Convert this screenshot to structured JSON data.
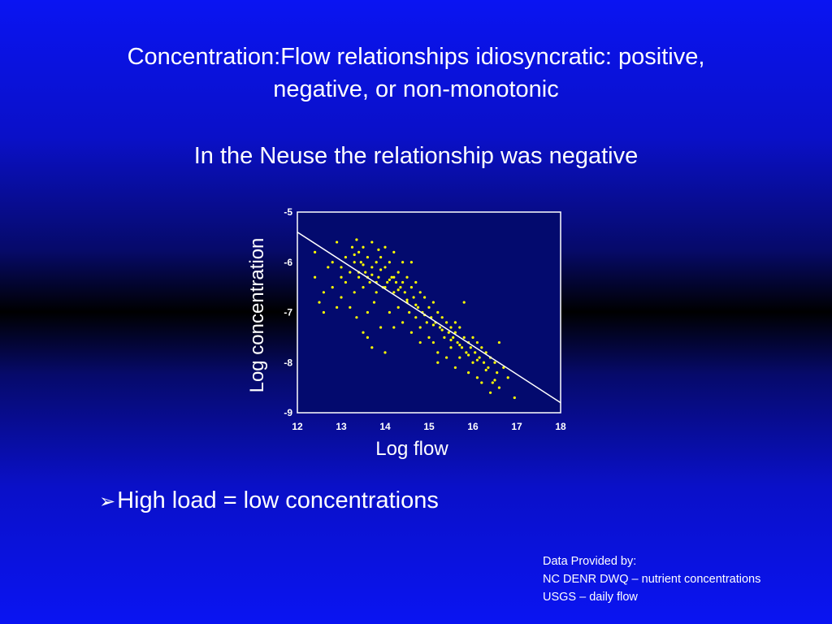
{
  "slide": {
    "title_line1": "Concentration:Flow relationships idiosyncratic: positive,",
    "title_line2": "negative, or non-monotonic",
    "subtitle": "In the Neuse the relationship was negative",
    "bullet_marker": "➢",
    "bullet": "High load = low concentrations",
    "credits": {
      "heading": "Data Provided by:",
      "line1": "NC DENR DWQ – nutrient concentrations",
      "line2": "USGS – daily flow"
    }
  },
  "colors": {
    "point": "#ffff00",
    "line": "#ffffff",
    "frame": "#ffffff",
    "plot_background": "#030a6e"
  },
  "chart_data": {
    "type": "scatter",
    "xlabel": "Log flow",
    "ylabel": "Log concentration",
    "xlim": [
      12,
      18
    ],
    "ylim": [
      -9,
      -5
    ],
    "xticks": [
      12,
      13,
      14,
      15,
      16,
      17,
      18
    ],
    "yticks": [
      -5,
      -6,
      -7,
      -8,
      -9
    ],
    "grid": false,
    "trend_line": {
      "x": [
        12,
        18
      ],
      "y": [
        -5.4,
        -8.8
      ]
    },
    "points": [
      [
        12.4,
        -5.8
      ],
      [
        12.4,
        -6.3
      ],
      [
        12.5,
        -6.8
      ],
      [
        12.6,
        -7.0
      ],
      [
        12.7,
        -6.1
      ],
      [
        12.8,
        -6.5
      ],
      [
        12.9,
        -5.6
      ],
      [
        12.9,
        -6.9
      ],
      [
        13.0,
        -6.1
      ],
      [
        13.0,
        -6.7
      ],
      [
        13.1,
        -5.9
      ],
      [
        13.1,
        -6.4
      ],
      [
        13.2,
        -6.2
      ],
      [
        13.2,
        -6.9
      ],
      [
        13.25,
        -5.7
      ],
      [
        13.3,
        -6.0
      ],
      [
        13.3,
        -6.6
      ],
      [
        13.35,
        -5.55
      ],
      [
        13.35,
        -7.1
      ],
      [
        13.4,
        -5.8
      ],
      [
        13.4,
        -6.3
      ],
      [
        13.45,
        -6.0
      ],
      [
        13.5,
        -5.7
      ],
      [
        13.5,
        -6.5
      ],
      [
        13.5,
        -7.4
      ],
      [
        13.55,
        -6.2
      ],
      [
        13.6,
        -5.9
      ],
      [
        13.6,
        -7.0
      ],
      [
        13.65,
        -6.4
      ],
      [
        13.7,
        -5.6
      ],
      [
        13.7,
        -6.1
      ],
      [
        13.7,
        -7.7
      ],
      [
        13.75,
        -6.8
      ],
      [
        13.8,
        -6.0
      ],
      [
        13.8,
        -6.6
      ],
      [
        13.85,
        -5.75
      ],
      [
        13.85,
        -6.3
      ],
      [
        13.9,
        -5.9
      ],
      [
        13.9,
        -7.3
      ],
      [
        13.95,
        -6.5
      ],
      [
        14.0,
        -6.1
      ],
      [
        14.0,
        -5.7
      ],
      [
        14.05,
        -6.4
      ],
      [
        14.1,
        -6.0
      ],
      [
        14.1,
        -7.0
      ],
      [
        14.15,
        -6.3
      ],
      [
        14.2,
        -5.8
      ],
      [
        14.2,
        -6.6
      ],
      [
        14.25,
        -6.4
      ],
      [
        14.3,
        -6.2
      ],
      [
        14.3,
        -6.9
      ],
      [
        14.35,
        -6.5
      ],
      [
        14.4,
        -6.0
      ],
      [
        14.4,
        -7.2
      ],
      [
        14.45,
        -6.6
      ],
      [
        14.5,
        -6.3
      ],
      [
        14.5,
        -6.8
      ],
      [
        14.55,
        -7.0
      ],
      [
        14.6,
        -6.5
      ],
      [
        14.6,
        -7.4
      ],
      [
        14.65,
        -6.7
      ],
      [
        14.7,
        -6.4
      ],
      [
        14.7,
        -7.1
      ],
      [
        14.75,
        -6.9
      ],
      [
        14.8,
        -6.6
      ],
      [
        14.8,
        -7.3
      ],
      [
        14.85,
        -7.0
      ],
      [
        14.9,
        -6.7
      ],
      [
        14.95,
        -7.2
      ],
      [
        15.0,
        -6.9
      ],
      [
        15.0,
        -7.5
      ],
      [
        15.05,
        -7.1
      ],
      [
        15.1,
        -6.8
      ],
      [
        15.1,
        -7.6
      ],
      [
        15.15,
        -7.2
      ],
      [
        15.2,
        -7.0
      ],
      [
        15.2,
        -7.8
      ],
      [
        15.25,
        -7.3
      ],
      [
        15.3,
        -7.1
      ],
      [
        15.35,
        -7.5
      ],
      [
        15.4,
        -7.2
      ],
      [
        15.4,
        -7.9
      ],
      [
        15.45,
        -7.4
      ],
      [
        15.5,
        -7.3
      ],
      [
        15.5,
        -7.7
      ],
      [
        15.55,
        -7.5
      ],
      [
        15.6,
        -7.4
      ],
      [
        15.6,
        -8.1
      ],
      [
        15.65,
        -7.6
      ],
      [
        15.7,
        -7.3
      ],
      [
        15.7,
        -7.9
      ],
      [
        15.75,
        -7.7
      ],
      [
        15.8,
        -7.5
      ],
      [
        15.85,
        -7.8
      ],
      [
        15.9,
        -7.6
      ],
      [
        15.9,
        -8.2
      ],
      [
        15.95,
        -7.7
      ],
      [
        16.0,
        -7.5
      ],
      [
        16.0,
        -8.0
      ],
      [
        16.05,
        -7.8
      ],
      [
        16.1,
        -7.6
      ],
      [
        16.1,
        -8.3
      ],
      [
        16.15,
        -7.9
      ],
      [
        16.2,
        -7.7
      ],
      [
        16.25,
        -8.0
      ],
      [
        16.3,
        -7.8
      ],
      [
        16.35,
        -8.1
      ],
      [
        16.4,
        -7.9
      ],
      [
        16.45,
        -8.4
      ],
      [
        16.5,
        -8.0
      ],
      [
        16.55,
        -8.2
      ],
      [
        16.6,
        -8.5
      ],
      [
        16.7,
        -8.1
      ],
      [
        16.8,
        -8.3
      ],
      [
        16.95,
        -8.7
      ],
      [
        13.4,
        -6.2
      ],
      [
        13.6,
        -6.3
      ],
      [
        13.8,
        -6.4
      ],
      [
        14.0,
        -6.5
      ],
      [
        14.2,
        -6.3
      ],
      [
        14.4,
        -6.4
      ],
      [
        13.3,
        -5.85
      ],
      [
        13.5,
        -6.05
      ],
      [
        13.7,
        -6.25
      ],
      [
        13.9,
        -6.15
      ],
      [
        14.1,
        -6.35
      ],
      [
        14.3,
        -6.55
      ],
      [
        14.5,
        -6.75
      ],
      [
        14.7,
        -6.85
      ],
      [
        14.9,
        -7.05
      ],
      [
        15.1,
        -7.25
      ],
      [
        15.3,
        -7.35
      ],
      [
        15.5,
        -7.55
      ],
      [
        15.7,
        -7.65
      ],
      [
        15.9,
        -7.85
      ],
      [
        16.1,
        -7.95
      ],
      [
        16.3,
        -8.15
      ],
      [
        16.5,
        -8.35
      ],
      [
        12.8,
        -6.0
      ],
      [
        13.0,
        -6.3
      ],
      [
        14.0,
        -7.8
      ],
      [
        14.6,
        -6.0
      ],
      [
        15.8,
        -6.8
      ],
      [
        16.6,
        -7.6
      ],
      [
        16.4,
        -8.6
      ],
      [
        15.2,
        -8.0
      ],
      [
        14.8,
        -7.6
      ],
      [
        13.6,
        -7.5
      ],
      [
        12.6,
        -6.6
      ],
      [
        16.2,
        -8.4
      ],
      [
        15.6,
        -7.2
      ],
      [
        14.2,
        -7.3
      ]
    ]
  }
}
